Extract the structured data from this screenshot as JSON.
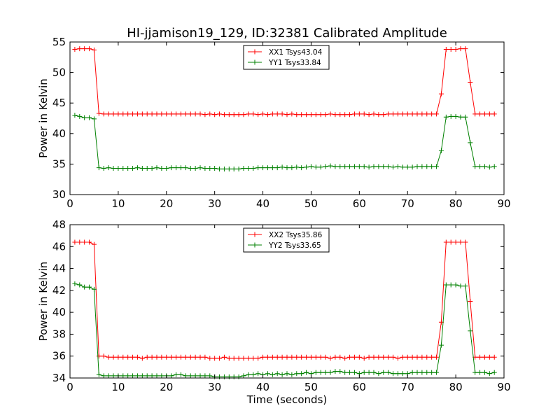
{
  "colors": {
    "series_a": "#ff0000",
    "series_b": "#008000",
    "axes": "#000000"
  },
  "chart_data": [
    {
      "type": "line",
      "title": "HI-jjamison19_129, ID:32381 Calibrated Amplitude",
      "xlabel": "",
      "ylabel": "Power in Kelvin",
      "xlim": [
        0,
        90
      ],
      "ylim": [
        30,
        55
      ],
      "xticks": [
        0,
        10,
        20,
        30,
        40,
        50,
        60,
        70,
        80,
        90
      ],
      "yticks": [
        30,
        35,
        40,
        45,
        50,
        55
      ],
      "legend_position": "top-center",
      "x": [
        1,
        2,
        3,
        4,
        5,
        6,
        7,
        8,
        9,
        10,
        11,
        12,
        13,
        14,
        15,
        16,
        17,
        18,
        19,
        20,
        21,
        22,
        23,
        24,
        25,
        26,
        27,
        28,
        29,
        30,
        31,
        32,
        33,
        34,
        35,
        36,
        37,
        38,
        39,
        40,
        41,
        42,
        43,
        44,
        45,
        46,
        47,
        48,
        49,
        50,
        51,
        52,
        53,
        54,
        55,
        56,
        57,
        58,
        59,
        60,
        61,
        62,
        63,
        64,
        65,
        66,
        67,
        68,
        69,
        70,
        71,
        72,
        73,
        74,
        75,
        76,
        77,
        78,
        79,
        80,
        81,
        82,
        83,
        84,
        85,
        86,
        87,
        88
      ],
      "series": [
        {
          "name": "XX1 Tsys43.04",
          "color": "#ff0000",
          "values": [
            53.8,
            53.9,
            53.9,
            53.9,
            53.7,
            43.3,
            43.2,
            43.2,
            43.2,
            43.2,
            43.2,
            43.2,
            43.2,
            43.2,
            43.2,
            43.2,
            43.2,
            43.2,
            43.2,
            43.2,
            43.2,
            43.2,
            43.2,
            43.2,
            43.2,
            43.2,
            43.2,
            43.1,
            43.2,
            43.1,
            43.2,
            43.1,
            43.1,
            43.1,
            43.1,
            43.1,
            43.2,
            43.2,
            43.1,
            43.2,
            43.1,
            43.2,
            43.2,
            43.2,
            43.1,
            43.2,
            43.1,
            43.1,
            43.1,
            43.1,
            43.1,
            43.1,
            43.1,
            43.2,
            43.1,
            43.1,
            43.1,
            43.1,
            43.2,
            43.2,
            43.2,
            43.1,
            43.2,
            43.1,
            43.1,
            43.2,
            43.2,
            43.2,
            43.2,
            43.2,
            43.2,
            43.2,
            43.2,
            43.2,
            43.2,
            43.2,
            46.5,
            53.8,
            53.8,
            53.8,
            53.9,
            53.9,
            48.4,
            43.2,
            43.2,
            43.2,
            43.2,
            43.2
          ]
        },
        {
          "name": "YY1 Tsys33.84",
          "color": "#008000",
          "values": [
            43.0,
            42.8,
            42.6,
            42.6,
            42.4,
            34.4,
            34.3,
            34.4,
            34.3,
            34.3,
            34.3,
            34.3,
            34.3,
            34.4,
            34.3,
            34.3,
            34.3,
            34.4,
            34.3,
            34.3,
            34.4,
            34.4,
            34.4,
            34.4,
            34.3,
            34.3,
            34.4,
            34.3,
            34.3,
            34.3,
            34.2,
            34.2,
            34.2,
            34.2,
            34.2,
            34.3,
            34.3,
            34.3,
            34.4,
            34.4,
            34.4,
            34.4,
            34.4,
            34.5,
            34.4,
            34.4,
            34.5,
            34.4,
            34.5,
            34.6,
            34.5,
            34.5,
            34.6,
            34.7,
            34.6,
            34.6,
            34.6,
            34.6,
            34.6,
            34.6,
            34.6,
            34.5,
            34.6,
            34.6,
            34.6,
            34.6,
            34.5,
            34.6,
            34.5,
            34.5,
            34.5,
            34.6,
            34.6,
            34.6,
            34.6,
            34.6,
            37.2,
            42.7,
            42.8,
            42.8,
            42.7,
            42.7,
            38.5,
            34.6,
            34.6,
            34.6,
            34.5,
            34.6
          ]
        }
      ]
    },
    {
      "type": "line",
      "title": "",
      "xlabel": "Time (seconds)",
      "ylabel": "Power in Kelvin",
      "xlim": [
        0,
        90
      ],
      "ylim": [
        34,
        48
      ],
      "xticks": [
        0,
        10,
        20,
        30,
        40,
        50,
        60,
        70,
        80,
        90
      ],
      "yticks": [
        34,
        36,
        38,
        40,
        42,
        44,
        46,
        48
      ],
      "legend_position": "top-center",
      "x": [
        1,
        2,
        3,
        4,
        5,
        6,
        7,
        8,
        9,
        10,
        11,
        12,
        13,
        14,
        15,
        16,
        17,
        18,
        19,
        20,
        21,
        22,
        23,
        24,
        25,
        26,
        27,
        28,
        29,
        30,
        31,
        32,
        33,
        34,
        35,
        36,
        37,
        38,
        39,
        40,
        41,
        42,
        43,
        44,
        45,
        46,
        47,
        48,
        49,
        50,
        51,
        52,
        53,
        54,
        55,
        56,
        57,
        58,
        59,
        60,
        61,
        62,
        63,
        64,
        65,
        66,
        67,
        68,
        69,
        70,
        71,
        72,
        73,
        74,
        75,
        76,
        77,
        78,
        79,
        80,
        81,
        82,
        83,
        84,
        85,
        86,
        87,
        88
      ],
      "series": [
        {
          "name": "XX2 Tsys35.86",
          "color": "#ff0000",
          "values": [
            46.4,
            46.4,
            46.4,
            46.4,
            46.2,
            36.0,
            36.0,
            35.9,
            35.9,
            35.9,
            35.9,
            35.9,
            35.9,
            35.9,
            35.8,
            35.9,
            35.9,
            35.9,
            35.9,
            35.9,
            35.9,
            35.9,
            35.9,
            35.9,
            35.9,
            35.9,
            35.9,
            35.9,
            35.8,
            35.8,
            35.8,
            35.9,
            35.8,
            35.8,
            35.8,
            35.8,
            35.8,
            35.8,
            35.8,
            35.9,
            35.9,
            35.9,
            35.9,
            35.9,
            35.9,
            35.9,
            35.9,
            35.9,
            35.9,
            35.9,
            35.9,
            35.9,
            35.9,
            35.8,
            35.9,
            35.9,
            35.8,
            35.9,
            35.9,
            35.9,
            35.8,
            35.9,
            35.9,
            35.9,
            35.9,
            35.9,
            35.9,
            35.8,
            35.9,
            35.9,
            35.9,
            35.9,
            35.9,
            35.9,
            35.9,
            35.9,
            39.1,
            46.4,
            46.4,
            46.4,
            46.4,
            46.4,
            41.0,
            35.9,
            35.9,
            35.9,
            35.9,
            35.9
          ]
        },
        {
          "name": "YY2 Tsys33.65",
          "color": "#008000",
          "values": [
            42.6,
            42.5,
            42.3,
            42.3,
            42.1,
            34.3,
            34.2,
            34.2,
            34.2,
            34.2,
            34.2,
            34.2,
            34.2,
            34.2,
            34.2,
            34.2,
            34.2,
            34.2,
            34.2,
            34.2,
            34.2,
            34.3,
            34.3,
            34.2,
            34.2,
            34.2,
            34.2,
            34.2,
            34.2,
            34.1,
            34.1,
            34.1,
            34.1,
            34.1,
            34.1,
            34.2,
            34.3,
            34.3,
            34.4,
            34.3,
            34.4,
            34.3,
            34.4,
            34.3,
            34.4,
            34.3,
            34.4,
            34.4,
            34.5,
            34.4,
            34.5,
            34.5,
            34.5,
            34.5,
            34.6,
            34.6,
            34.5,
            34.5,
            34.5,
            34.4,
            34.5,
            34.5,
            34.5,
            34.4,
            34.5,
            34.5,
            34.4,
            34.4,
            34.4,
            34.4,
            34.5,
            34.5,
            34.5,
            34.5,
            34.5,
            34.5,
            37.0,
            42.5,
            42.5,
            42.5,
            42.4,
            42.4,
            38.3,
            34.5,
            34.5,
            34.5,
            34.4,
            34.5
          ]
        }
      ]
    }
  ]
}
